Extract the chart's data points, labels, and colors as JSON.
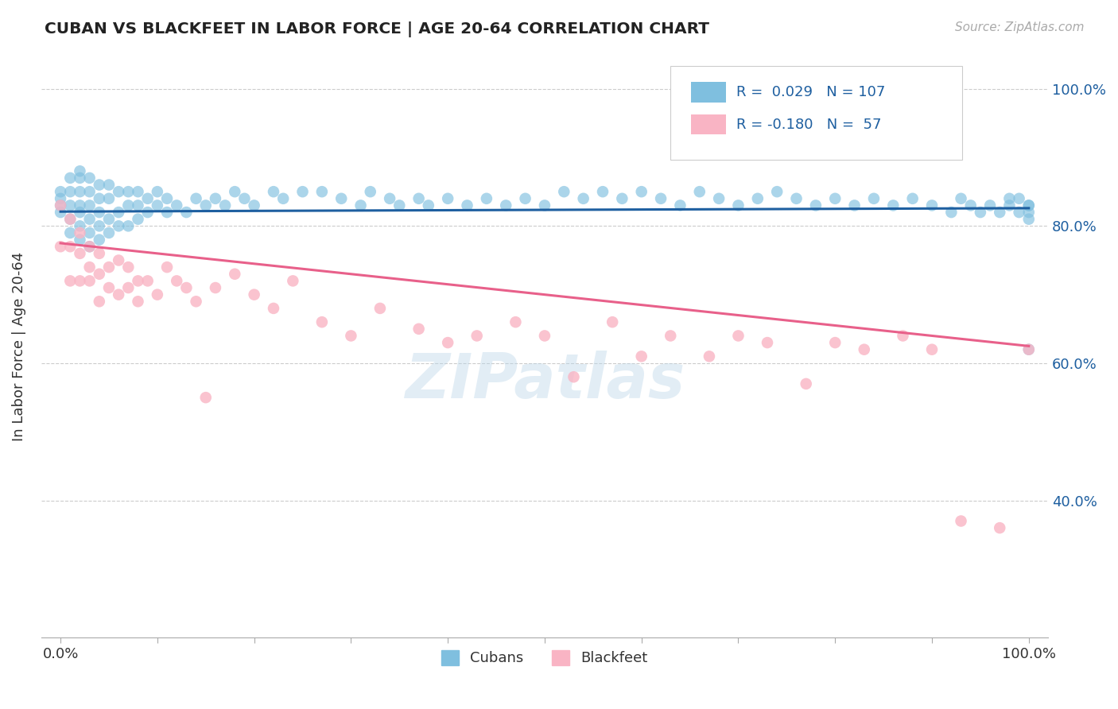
{
  "title": "CUBAN VS BLACKFEET IN LABOR FORCE | AGE 20-64 CORRELATION CHART",
  "source_text": "Source: ZipAtlas.com",
  "ylabel": "In Labor Force | Age 20-64",
  "xlim": [
    -0.02,
    1.02
  ],
  "ylim": [
    0.2,
    1.05
  ],
  "ytick_labels": [
    "40.0%",
    "60.0%",
    "80.0%",
    "100.0%"
  ],
  "ytick_values": [
    0.4,
    0.6,
    0.8,
    1.0
  ],
  "xtick_values": [
    0.0,
    0.1,
    0.2,
    0.3,
    0.4,
    0.5,
    0.6,
    0.7,
    0.8,
    0.9,
    1.0
  ],
  "xtick_labels_show": {
    "0.0": "0.0%",
    "1.0": "100.0%"
  },
  "legend_labels": [
    "Cubans",
    "Blackfeet"
  ],
  "blue_color": "#7fbfdf",
  "pink_color": "#f9b4c4",
  "blue_line_color": "#1e5fa0",
  "pink_line_color": "#e8608a",
  "R_blue": 0.029,
  "N_blue": 107,
  "R_pink": -0.18,
  "N_pink": 57,
  "watermark": "ZIPatlas",
  "blue_line_start": 0.821,
  "blue_line_end": 0.826,
  "pink_line_start": 0.775,
  "pink_line_end": 0.625,
  "cubans_x": [
    0.0,
    0.0,
    0.0,
    0.0,
    0.01,
    0.01,
    0.01,
    0.01,
    0.01,
    0.02,
    0.02,
    0.02,
    0.02,
    0.02,
    0.02,
    0.02,
    0.03,
    0.03,
    0.03,
    0.03,
    0.03,
    0.03,
    0.04,
    0.04,
    0.04,
    0.04,
    0.04,
    0.05,
    0.05,
    0.05,
    0.05,
    0.06,
    0.06,
    0.06,
    0.07,
    0.07,
    0.07,
    0.08,
    0.08,
    0.08,
    0.09,
    0.09,
    0.1,
    0.1,
    0.11,
    0.11,
    0.12,
    0.13,
    0.14,
    0.15,
    0.16,
    0.17,
    0.18,
    0.19,
    0.2,
    0.22,
    0.23,
    0.25,
    0.27,
    0.29,
    0.31,
    0.32,
    0.34,
    0.35,
    0.37,
    0.38,
    0.4,
    0.42,
    0.44,
    0.46,
    0.48,
    0.5,
    0.52,
    0.54,
    0.56,
    0.58,
    0.6,
    0.62,
    0.64,
    0.66,
    0.68,
    0.7,
    0.72,
    0.74,
    0.76,
    0.78,
    0.8,
    0.82,
    0.84,
    0.86,
    0.88,
    0.9,
    0.92,
    0.93,
    0.94,
    0.95,
    0.96,
    0.97,
    0.98,
    0.98,
    0.99,
    0.99,
    1.0,
    1.0,
    1.0,
    1.0,
    1.0
  ],
  "cubans_y": [
    0.82,
    0.83,
    0.84,
    0.85,
    0.79,
    0.81,
    0.83,
    0.85,
    0.87,
    0.78,
    0.8,
    0.82,
    0.83,
    0.85,
    0.87,
    0.88,
    0.77,
    0.79,
    0.81,
    0.83,
    0.85,
    0.87,
    0.78,
    0.8,
    0.82,
    0.84,
    0.86,
    0.79,
    0.81,
    0.84,
    0.86,
    0.8,
    0.82,
    0.85,
    0.8,
    0.83,
    0.85,
    0.81,
    0.83,
    0.85,
    0.82,
    0.84,
    0.83,
    0.85,
    0.82,
    0.84,
    0.83,
    0.82,
    0.84,
    0.83,
    0.84,
    0.83,
    0.85,
    0.84,
    0.83,
    0.85,
    0.84,
    0.85,
    0.85,
    0.84,
    0.83,
    0.85,
    0.84,
    0.83,
    0.84,
    0.83,
    0.84,
    0.83,
    0.84,
    0.83,
    0.84,
    0.83,
    0.85,
    0.84,
    0.85,
    0.84,
    0.85,
    0.84,
    0.83,
    0.85,
    0.84,
    0.83,
    0.84,
    0.85,
    0.84,
    0.83,
    0.84,
    0.83,
    0.84,
    0.83,
    0.84,
    0.83,
    0.82,
    0.84,
    0.83,
    0.82,
    0.83,
    0.82,
    0.84,
    0.83,
    0.82,
    0.84,
    0.83,
    0.82,
    0.81,
    0.83,
    0.62
  ],
  "blackfeet_x": [
    0.0,
    0.0,
    0.01,
    0.01,
    0.01,
    0.02,
    0.02,
    0.02,
    0.03,
    0.03,
    0.03,
    0.04,
    0.04,
    0.04,
    0.05,
    0.05,
    0.06,
    0.06,
    0.07,
    0.07,
    0.08,
    0.08,
    0.09,
    0.1,
    0.11,
    0.12,
    0.13,
    0.14,
    0.15,
    0.16,
    0.18,
    0.2,
    0.22,
    0.24,
    0.27,
    0.3,
    0.33,
    0.37,
    0.4,
    0.43,
    0.47,
    0.5,
    0.53,
    0.57,
    0.6,
    0.63,
    0.67,
    0.7,
    0.73,
    0.77,
    0.8,
    0.83,
    0.87,
    0.9,
    0.93,
    0.97,
    1.0
  ],
  "blackfeet_y": [
    0.83,
    0.77,
    0.81,
    0.77,
    0.72,
    0.76,
    0.79,
    0.72,
    0.74,
    0.77,
    0.72,
    0.76,
    0.73,
    0.69,
    0.74,
    0.71,
    0.75,
    0.7,
    0.74,
    0.71,
    0.72,
    0.69,
    0.72,
    0.7,
    0.74,
    0.72,
    0.71,
    0.69,
    0.55,
    0.71,
    0.73,
    0.7,
    0.68,
    0.72,
    0.66,
    0.64,
    0.68,
    0.65,
    0.63,
    0.64,
    0.66,
    0.64,
    0.58,
    0.66,
    0.61,
    0.64,
    0.61,
    0.64,
    0.63,
    0.57,
    0.63,
    0.62,
    0.64,
    0.62,
    0.37,
    0.36,
    0.62
  ]
}
